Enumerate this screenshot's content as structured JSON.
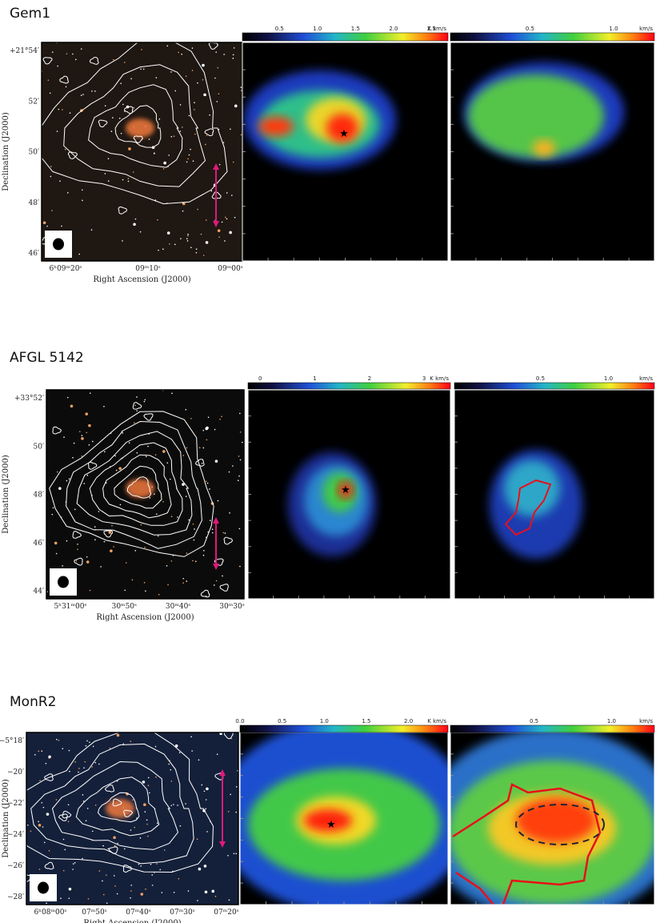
{
  "figure": {
    "rows": [
      {
        "title": "Gem1",
        "declination_label": "Declination (J2000)",
        "right_ascension_label": "Right Ascension (J2000)",
        "dec_ticks": [
          "+21°54′",
          "52′",
          "50′",
          "48′",
          "46′"
        ],
        "ra_ticks": [
          "6ʰ09ᵐ20ˢ",
          "09ᵐ10ˢ",
          "09ᵐ00ˢ"
        ],
        "colorbar_intensity": {
          "ticks": [
            "0.5",
            "1.0",
            "1.5",
            "2.0",
            "2.5"
          ],
          "unit": "K km/s"
        },
        "colorbar_dispersion": {
          "ticks": [
            "0.5",
            "1.0"
          ],
          "unit": "km/s"
        }
      },
      {
        "title": "AFGL 5142",
        "declination_label": "Declination (J2000)",
        "right_ascension_label": "Right Ascension (J2000)",
        "dec_ticks": [
          "+33°52′",
          "50′",
          "48′",
          "46′",
          "44′"
        ],
        "ra_ticks": [
          "5ʰ31ᵐ00ˢ",
          "30ᵐ50ˢ",
          "30ᵐ40ˢ",
          "30ᵐ30ˢ"
        ],
        "colorbar_intensity": {
          "ticks": [
            "0",
            "1",
            "2",
            "3"
          ],
          "unit": "K km/s"
        },
        "colorbar_dispersion": {
          "ticks": [
            "0.5",
            "1.0"
          ],
          "unit": "km/s"
        }
      },
      {
        "title": "MonR2",
        "declination_label": "Declination (J2000)",
        "right_ascension_label": "Right Ascension (J2000)",
        "dec_ticks": [
          "−5°18′",
          "−20′",
          "−22′",
          "−24′",
          "−26′",
          "−28′"
        ],
        "ra_ticks": [
          "6ʰ08ᵐ00ˢ",
          "07ᵐ50ˢ",
          "07ᵐ40ˢ",
          "07ᵐ30ˢ",
          "07ᵐ20ˢ"
        ],
        "colorbar_intensity": {
          "ticks": [
            "0.0",
            "0.5",
            "1.0",
            "1.5",
            "2.0"
          ],
          "unit": "K km/s"
        },
        "colorbar_dispersion": {
          "ticks": [
            "0.5",
            "1.0"
          ],
          "unit": "km/s"
        }
      }
    ]
  }
}
